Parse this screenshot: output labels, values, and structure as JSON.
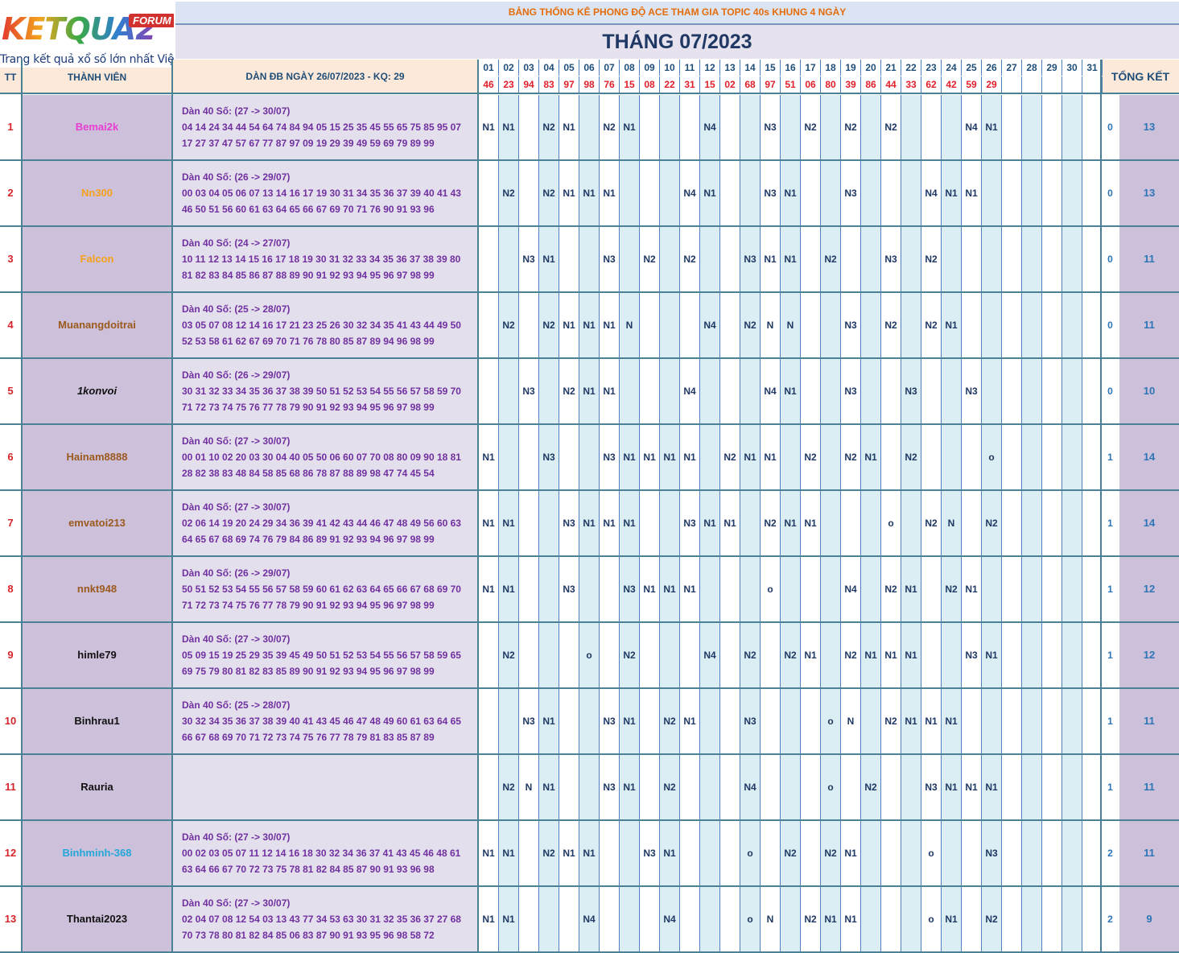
{
  "logo": {
    "word": "KETQUA2",
    "forum": "FORUM",
    "tagline": "Trang kết quả xổ số lớn nhất Việt Nam"
  },
  "top_title": "BẢNG THỐNG KÊ PHONG ĐỘ ACE THAM GIA TOPIC 40s KHUNG 4 NGÀY",
  "month_title": "THÁNG 07/2023",
  "headers": {
    "tt": "TT",
    "member": "THÀNH VIÊN",
    "dan": "DÀN ĐB NGÀY 26/07/2023 - KQ: 29",
    "summary": "TỔNG KẾT"
  },
  "days": [
    "01",
    "02",
    "03",
    "04",
    "05",
    "06",
    "07",
    "08",
    "09",
    "10",
    "11",
    "12",
    "13",
    "14",
    "15",
    "16",
    "17",
    "18",
    "19",
    "20",
    "21",
    "22",
    "23",
    "24",
    "25",
    "26",
    "27",
    "28",
    "29",
    "30",
    "31"
  ],
  "results": [
    "46",
    "23",
    "94",
    "83",
    "97",
    "98",
    "76",
    "15",
    "08",
    "22",
    "31",
    "15",
    "02",
    "68",
    "97",
    "51",
    "06",
    "80",
    "39",
    "86",
    "44",
    "33",
    "62",
    "42",
    "59",
    "29",
    "",
    "",
    "",
    "",
    ""
  ],
  "colors": {
    "pink": "#e83fd2",
    "orange": "#f7a11a",
    "brown": "#9c5a1e",
    "black": "#111111",
    "blue": "#25a7d9"
  },
  "rows": [
    {
      "tt": "1",
      "name": "Bemai2k",
      "color": "pink",
      "italic": false,
      "dan_head": "Dàn 40 Số: (27 -> 30/07)",
      "dan_l1": "04 14 24 34 44 54 64 74 84 94 05 15 25 35 45 55 65 75 85 95 07",
      "dan_l2": "17 27 37 47 57 67 77 87 97 09 19 29 39 49 59 69 79 89 99",
      "cells": [
        "N1",
        "N1",
        "",
        "N2",
        "N1",
        "",
        "N2",
        "N1",
        "",
        "",
        "",
        "N4",
        "",
        "",
        "N3",
        "",
        "N2",
        "",
        "N2",
        "",
        "N2",
        "",
        "",
        "",
        "N4",
        "N1",
        "",
        "",
        "",
        "",
        ""
      ],
      "s1": "0",
      "s2": "13"
    },
    {
      "tt": "2",
      "name": "Nn300",
      "color": "orange",
      "italic": false,
      "dan_head": "Dàn 40 Số: (26 -> 29/07)",
      "dan_l1": "00 03 04 05 06 07 13 14 16 17 19 30 31 34 35 36 37 39 40 41 43",
      "dan_l2": "46 50 51 56 60 61 63 64 65 66 67 69 70 71 76 90 91 93 96",
      "cells": [
        "",
        "N2",
        "",
        "N2",
        "N1",
        "N1",
        "N1",
        "",
        "",
        "",
        "N4",
        "N1",
        "",
        "",
        "N3",
        "N1",
        "",
        "",
        "N3",
        "",
        "",
        "",
        "N4",
        "N1",
        "N1",
        "",
        "",
        "",
        "",
        "",
        ""
      ],
      "s1": "0",
      "s2": "13"
    },
    {
      "tt": "3",
      "name": "Falcon",
      "color": "orange",
      "italic": false,
      "dan_head": "Dàn 40 Số: (24 -> 27/07)",
      "dan_l1": "10 11 12 13 14 15 16 17 18 19 30 31 32 33 34 35 36 37 38 39 80",
      "dan_l2": "81 82 83 84 85 86 87 88 89 90 91 92 93 94 95 96 97 98 99",
      "cells": [
        "",
        "",
        "N3",
        "N1",
        "",
        "",
        "N3",
        "",
        "N2",
        "",
        "N2",
        "",
        "",
        "N3",
        "N1",
        "N1",
        "",
        "N2",
        "",
        "",
        "N3",
        "",
        "N2",
        "",
        "",
        "",
        "",
        "",
        "",
        "",
        ""
      ],
      "s1": "0",
      "s2": "11"
    },
    {
      "tt": "4",
      "name": "Muanangdoitrai",
      "color": "brown",
      "italic": false,
      "dan_head": "Dàn 40 Số: (25 -> 28/07)",
      "dan_l1": "03 05 07 08 12 14 16 17 21 23 25 26 30 32 34 35 41 43 44 49 50",
      "dan_l2": "52 53 58 61 62 67 69 70 71 76 78 80 85 87 89 94 96 98 99",
      "cells": [
        "",
        "N2",
        "",
        "N2",
        "N1",
        "N1",
        "N1",
        "N",
        "",
        "",
        "",
        "N4",
        "",
        "N2",
        "N",
        "N",
        "",
        "",
        "N3",
        "",
        "N2",
        "",
        "N2",
        "N1",
        "",
        "",
        "",
        "",
        "",
        "",
        ""
      ],
      "s1": "0",
      "s2": "11"
    },
    {
      "tt": "5",
      "name": "1konvoi",
      "color": "black",
      "italic": true,
      "dan_head": "Dàn 40 Số: (26 -> 29/07)",
      "dan_l1": "30 31 32 33 34 35 36 37 38 39 50 51 52 53 54 55 56 57 58 59 70",
      "dan_l2": "71 72 73 74 75 76 77 78 79 90 91 92 93 94 95 96 97 98 99",
      "cells": [
        "",
        "",
        "N3",
        "",
        "N2",
        "N1",
        "N1",
        "",
        "",
        "",
        "N4",
        "",
        "",
        "",
        "N4",
        "N1",
        "",
        "",
        "N3",
        "",
        "",
        "N3",
        "",
        "",
        "N3",
        "",
        "",
        "",
        "",
        "",
        ""
      ],
      "s1": "0",
      "s2": "10"
    },
    {
      "tt": "6",
      "name": "Hainam8888",
      "color": "brown",
      "italic": false,
      "dan_head": "Dàn 40 Số: (27 -> 30/07)",
      "dan_l1": "00 01 10 02 20 03 30 04 40 05 50 06 60 07 70 08 80 09 90 18 81",
      "dan_l2": "28 82 38 83 48 84 58 85 68 86 78 87 88 89 98 47 74 45 54",
      "cells": [
        "N1",
        "",
        "",
        "N3",
        "",
        "",
        "N3",
        "N1",
        "N1",
        "N1",
        "N1",
        "",
        "N2",
        "N1",
        "N1",
        "",
        "N2",
        "",
        "N2",
        "N1",
        "",
        "N2",
        "",
        "",
        "",
        "o",
        "",
        "",
        "",
        "",
        ""
      ],
      "s1": "1",
      "s2": "14"
    },
    {
      "tt": "7",
      "name": "emvatoi213",
      "color": "brown",
      "italic": false,
      "dan_head": "Dàn 40 Số: (27 -> 30/07)",
      "dan_l1": "02 06 14 19 20 24 29 34 36 39 41 42 43 44 46 47 48 49 56 60 63",
      "dan_l2": "64 65 67 68 69 74 76 79 84 86 89 91 92 93 94 96 97 98 99",
      "cells": [
        "N1",
        "N1",
        "",
        "",
        "N3",
        "N1",
        "N1",
        "N1",
        "",
        "",
        "N3",
        "N1",
        "N1",
        "",
        "N2",
        "N1",
        "N1",
        "",
        "",
        "",
        "o",
        "",
        "N2",
        "N",
        "",
        "N2",
        "",
        "",
        "",
        "",
        ""
      ],
      "s1": "1",
      "s2": "14"
    },
    {
      "tt": "8",
      "name": "nnkt948",
      "color": "brown",
      "italic": false,
      "dan_head": "Dàn 40 Số: (26 -> 29/07)",
      "dan_l1": "50 51 52 53 54 55 56 57 58 59 60 61 62 63 64 65 66 67 68 69 70",
      "dan_l2": "71 72 73 74 75 76 77 78 79 90 91 92 93 94 95 96 97 98 99",
      "cells": [
        "N1",
        "N1",
        "",
        "",
        "N3",
        "",
        "",
        "N3",
        "N1",
        "N1",
        "N1",
        "",
        "",
        "",
        "o",
        "",
        "",
        "",
        "N4",
        "",
        "N2",
        "N1",
        "",
        "N2",
        "N1",
        "",
        "",
        "",
        "",
        "",
        ""
      ],
      "s1": "1",
      "s2": "12"
    },
    {
      "tt": "9",
      "name": "himle79",
      "color": "black",
      "italic": false,
      "dan_head": "Dàn 40 Số: (27 -> 30/07)",
      "dan_l1": "05 09 15 19 25 29 35 39 45 49 50 51 52 53 54 55 56 57 58 59 65",
      "dan_l2": "69 75 79 80 81 82 83 85 89 90 91 92 93 94 95 96 97 98 99",
      "cells": [
        "",
        "N2",
        "",
        "",
        "",
        "o",
        "",
        "N2",
        "",
        "",
        "",
        "N4",
        "",
        "N2",
        "",
        "N2",
        "N1",
        "",
        "N2",
        "N1",
        "N1",
        "N1",
        "",
        "",
        "N3",
        "N1",
        "",
        "",
        "",
        "",
        ""
      ],
      "s1": "1",
      "s2": "12"
    },
    {
      "tt": "10",
      "name": "Binhrau1",
      "color": "black",
      "italic": false,
      "dan_head": "Dàn 40 Số: (25 -> 28/07)",
      "dan_l1": "30 32 34 35 36 37 38 39 40 41 43 45 46 47 48 49 60 61 63 64 65",
      "dan_l2": "66 67 68 69 70 71 72 73 74 75 76 77 78 79 81 83 85 87 89",
      "cells": [
        "",
        "",
        "N3",
        "N1",
        "",
        "",
        "N3",
        "N1",
        "",
        "N2",
        "N1",
        "",
        "",
        "N3",
        "",
        "",
        "",
        "o",
        "N",
        "",
        "N2",
        "N1",
        "N1",
        "N1",
        "",
        "",
        "",
        "",
        "",
        "",
        ""
      ],
      "s1": "1",
      "s2": "11"
    },
    {
      "tt": "11",
      "name": "Rauria",
      "color": "black",
      "italic": false,
      "dan_head": "",
      "dan_l1": "",
      "dan_l2": "",
      "cells": [
        "",
        "N2",
        "N",
        "N1",
        "",
        "",
        "N3",
        "N1",
        "",
        "N2",
        "",
        "",
        "",
        "N4",
        "",
        "",
        "",
        "o",
        "",
        "N2",
        "",
        "",
        "N3",
        "N1",
        "N1",
        "N1",
        "",
        "",
        "",
        "",
        ""
      ],
      "s1": "1",
      "s2": "11"
    },
    {
      "tt": "12",
      "name": "Binhminh-368",
      "color": "blue",
      "italic": false,
      "dan_head": "Dàn 40 Số: (27 -> 30/07)",
      "dan_l1": "00 02 03 05 07 11 12 14 16 18 30 32 34 36 37 41 43 45 46 48 61",
      "dan_l2": "63 64 66 67 70 72 73 75 78 81 82 84 85 87 90 91 93 96 98",
      "cells": [
        "N1",
        "N1",
        "",
        "N2",
        "N1",
        "N1",
        "",
        "",
        "N3",
        "N1",
        "",
        "",
        "",
        "o",
        "",
        "N2",
        "",
        "N2",
        "N1",
        "",
        "",
        "",
        "o",
        "",
        "",
        "N3",
        "",
        "",
        "",
        "",
        ""
      ],
      "s1": "2",
      "s2": "11"
    },
    {
      "tt": "13",
      "name": "Thantai2023",
      "color": "black",
      "italic": false,
      "dan_head": "Dàn 40 Số: (27 -> 30/07)",
      "dan_l1": "02 04 07 08 12 54 03 13 43 77 34 53 63 30 31 32 35 36 37 27 68",
      "dan_l2": "70 73 78 80 81 82 84 85 06 83 87 90 91 93 95 96 98 58 72",
      "cells": [
        "N1",
        "N1",
        "",
        "",
        "",
        "N4",
        "",
        "",
        "",
        "N4",
        "",
        "",
        "",
        "o",
        "N",
        "",
        "N2",
        "N1",
        "N1",
        "",
        "",
        "",
        "o",
        "N1",
        "",
        "N2",
        "",
        "",
        "",
        "",
        ""
      ],
      "s1": "2",
      "s2": "9"
    }
  ]
}
